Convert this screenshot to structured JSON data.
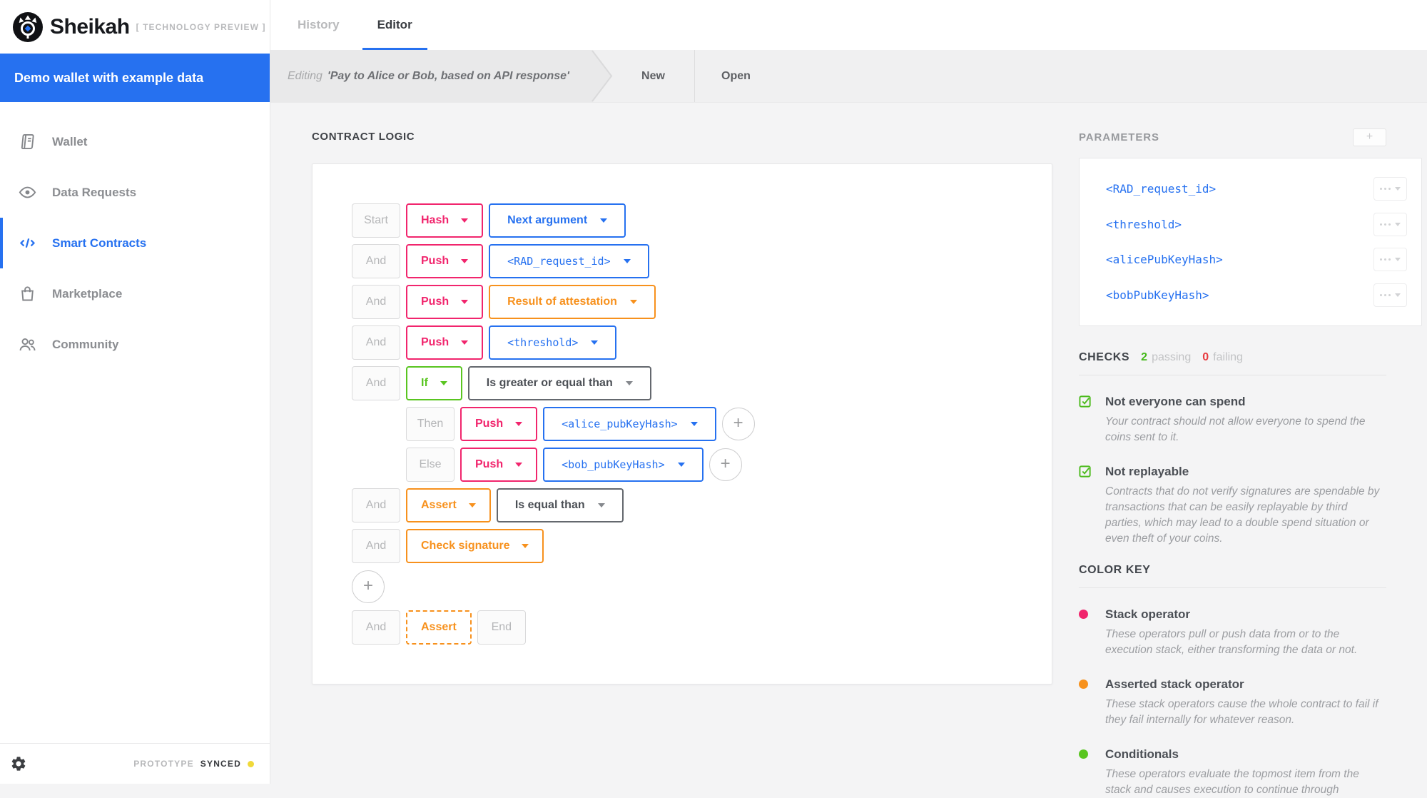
{
  "colors": {
    "accent_blue": "#2671f0",
    "stack_pink": "#f1256d",
    "asserted_orange": "#f7911d",
    "conditional_green": "#59c520",
    "fail_red": "#e73a3f",
    "sync_yellow": "#f0d93a"
  },
  "sidebar": {
    "brand": "Sheikah",
    "brand_tag": "[ TECHNOLOGY PREVIEW ]",
    "banner": "Demo wallet with example data",
    "items": [
      {
        "label": "Wallet",
        "icon": "wallet-book-icon",
        "active": false
      },
      {
        "label": "Data Requests",
        "icon": "eye-icon",
        "active": false
      },
      {
        "label": "Smart Contracts",
        "icon": "code-icon",
        "active": true
      },
      {
        "label": "Marketplace",
        "icon": "shopping-bag-icon",
        "active": false
      },
      {
        "label": "Community",
        "icon": "community-icon",
        "active": false
      }
    ],
    "footer": {
      "prototype_label": "PROTOTYPE",
      "sync_status": "SYNCED"
    }
  },
  "tabs": [
    {
      "label": "History",
      "active": false
    },
    {
      "label": "Editor",
      "active": true
    }
  ],
  "breadcrumb": {
    "editing_prefix": "Editing",
    "editing_title": "'Pay to Alice or Bob, based on API response'",
    "actions": [
      {
        "label": "New"
      },
      {
        "label": "Open"
      }
    ]
  },
  "editor": {
    "heading": "CONTRACT LOGIC",
    "add_label": "+",
    "rows": [
      {
        "label": "Start",
        "op": {
          "text": "Hash",
          "color": "pink",
          "caret": true
        },
        "value": {
          "text": "Next argument",
          "color": "blue",
          "mono": false,
          "caret": true
        }
      },
      {
        "label": "And",
        "op": {
          "text": "Push",
          "color": "pink",
          "caret": true
        },
        "value": {
          "text": "<RAD_request_id>",
          "color": "blue",
          "mono": true,
          "caret": true
        }
      },
      {
        "label": "And",
        "op": {
          "text": "Push",
          "color": "pink",
          "caret": true
        },
        "value": {
          "text": "Result of attestation",
          "color": "orange",
          "mono": false,
          "caret": true
        }
      },
      {
        "label": "And",
        "op": {
          "text": "Push",
          "color": "pink",
          "caret": true
        },
        "value": {
          "text": "<threshold>",
          "color": "blue",
          "mono": true,
          "caret": true
        }
      },
      {
        "label": "And",
        "op": {
          "text": "If",
          "color": "green",
          "caret": true
        },
        "value": {
          "text": "Is greater or equal than",
          "color": "dark",
          "mono": false,
          "caret": true
        }
      },
      {
        "indent": true,
        "label": "Then",
        "op": {
          "text": "Push",
          "color": "pink",
          "caret": true
        },
        "value": {
          "text": "<alice_pubKeyHash>",
          "color": "blue",
          "mono": true,
          "caret": true
        },
        "add_button": true
      },
      {
        "indent": true,
        "label": "Else",
        "op": {
          "text": "Push",
          "color": "pink",
          "caret": true
        },
        "value": {
          "text": "<bob_pubKeyHash>",
          "color": "blue",
          "mono": true,
          "caret": true
        },
        "add_button": true
      },
      {
        "label": "And",
        "op": {
          "text": "Assert",
          "color": "orange",
          "caret": true
        },
        "value": {
          "text": "Is equal than",
          "color": "dark",
          "mono": false,
          "caret": true
        }
      },
      {
        "label": "And",
        "op": {
          "text": "Check signature",
          "color": "orange",
          "caret": true
        }
      },
      {
        "add_row": true
      },
      {
        "label": "And",
        "op": {
          "text": "Assert",
          "color": "orange",
          "dashed": true,
          "caret": false
        },
        "end_label": "End"
      }
    ]
  },
  "parameters": {
    "heading": "PARAMETERS",
    "add_label": "+",
    "items": [
      "<RAD_request_id>",
      "<threshold>",
      "<alicePubKeyHash>",
      "<bobPubKeyHash>"
    ]
  },
  "checks": {
    "heading": "CHECKS",
    "passing_count": "2",
    "passing_label": "passing",
    "failing_count": "0",
    "failing_label": "failing",
    "items": [
      {
        "title": "Not everyone can spend",
        "description": "Your contract should not allow everyone to spend the coins sent to it."
      },
      {
        "title": "Not replayable",
        "description": "Contracts that do not verify signatures are spendable by transactions that can be easily replayable by third parties, which may lead to a double spend situation or even theft of your coins."
      }
    ]
  },
  "color_key": {
    "heading": "COLOR KEY",
    "items": [
      {
        "color": "#f1256d",
        "title": "Stack operator",
        "description": "These operators pull or push data from or to the execution stack, either transforming the data or not."
      },
      {
        "color": "#f7911d",
        "title": "Asserted stack operator",
        "description": "These stack operators cause the whole contract to fail if they fail internally for whatever reason."
      },
      {
        "color": "#59c520",
        "title": "Conditionals",
        "description": "These operators evaluate the topmost item from the stack and causes execution to continue through"
      }
    ]
  }
}
